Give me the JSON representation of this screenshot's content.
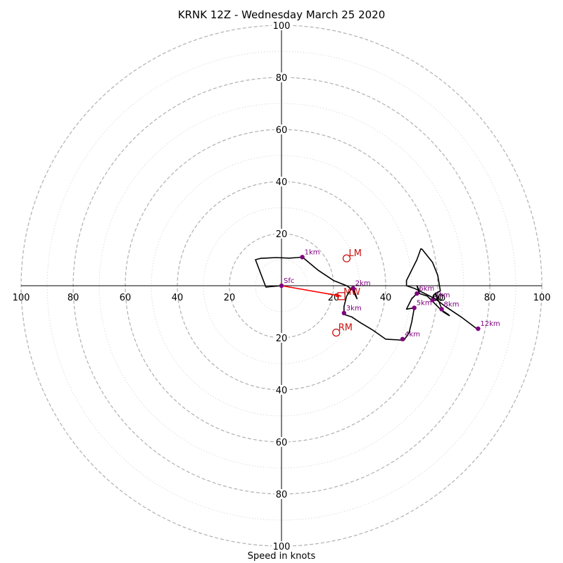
{
  "chart_data": {
    "type": "hodograph",
    "title": "KRNK 12Z - Wednesday March 25 2020",
    "xlabel": "Speed in knots",
    "rings_major": [
      20,
      40,
      60,
      80,
      100
    ],
    "rings_minor": [
      10,
      30,
      50,
      70,
      90
    ],
    "axis_tick_labels": [
      "20",
      "40",
      "60",
      "80",
      "100"
    ],
    "ylim": [
      -100,
      100
    ],
    "xlim": [
      -100,
      100
    ],
    "hodograph_trace": [
      [
        0,
        0
      ],
      [
        -6,
        -0.5
      ],
      [
        -10,
        10
      ],
      [
        -8,
        10.5
      ],
      [
        -2,
        10.8
      ],
      [
        3,
        10.6
      ],
      [
        6,
        10.8
      ],
      [
        8,
        11
      ],
      [
        14,
        6
      ],
      [
        20,
        2
      ],
      [
        25,
        0
      ],
      [
        28,
        -2
      ],
      [
        29,
        -5
      ],
      [
        27,
        -1
      ],
      [
        25,
        -4
      ],
      [
        24,
        -8
      ],
      [
        24,
        -11
      ],
      [
        27,
        -12
      ],
      [
        30,
        -14
      ],
      [
        35,
        -17
      ],
      [
        40,
        -20.5
      ],
      [
        45,
        -20.8
      ],
      [
        47,
        -21
      ],
      [
        49,
        -18
      ],
      [
        50,
        -14
      ],
      [
        51,
        -8.5
      ],
      [
        48,
        -9
      ],
      [
        50,
        -5
      ],
      [
        53,
        -2
      ],
      [
        52,
        0
      ],
      [
        53,
        -3
      ],
      [
        56,
        -4
      ],
      [
        58,
        -6
      ],
      [
        61,
        -9
      ],
      [
        64,
        -11
      ],
      [
        64.5,
        -11.5
      ],
      [
        62,
        -10
      ],
      [
        60,
        -5
      ],
      [
        59,
        -3
      ],
      [
        61,
        -2
      ],
      [
        60,
        4
      ],
      [
        58,
        9
      ],
      [
        54,
        14
      ],
      [
        53.5,
        14.2
      ],
      [
        52,
        10
      ],
      [
        48,
        2
      ],
      [
        48,
        0
      ],
      [
        51,
        -1
      ],
      [
        55,
        -3
      ],
      [
        59,
        -5
      ],
      [
        63,
        -8
      ],
      [
        69,
        -12
      ],
      [
        75,
        -16.5
      ]
    ],
    "height_markers": [
      {
        "label": "Sfc",
        "x": 0,
        "y": 0
      },
      {
        "label": "1km",
        "x": 8,
        "y": 11
      },
      {
        "label": "2km",
        "x": 27.5,
        "y": -1
      },
      {
        "label": "3km",
        "x": 24,
        "y": -10.5
      },
      {
        "label": "4km",
        "x": 46.5,
        "y": -20.5
      },
      {
        "label": "5km",
        "x": 51,
        "y": -8.5
      },
      {
        "label": "6km",
        "x": 52,
        "y": -3
      },
      {
        "label": "7km",
        "x": 58,
        "y": -5.5
      },
      {
        "label": "8km",
        "x": 61.5,
        "y": -9
      },
      {
        "label": "12km",
        "x": 75.5,
        "y": -16.5
      }
    ],
    "storm_motion": [
      {
        "label": "LM",
        "x": 25,
        "y": 10.5,
        "marker": "circle"
      },
      {
        "label": "RM",
        "x": 21,
        "y": -18,
        "marker": "circle"
      },
      {
        "label": "MW",
        "x": 23,
        "y": -4,
        "marker": "square"
      },
      {
        "label": "DD",
        "x": 58,
        "y": -4.5,
        "marker": "none"
      }
    ],
    "bunkers_vector": {
      "from": [
        0,
        0
      ],
      "to": [
        23,
        -4
      ]
    },
    "colors": {
      "trace": "#000000",
      "markers": "#800080",
      "storm": "#cc1111",
      "vector": "#ff0000",
      "ring": "#b0b0b0"
    }
  }
}
